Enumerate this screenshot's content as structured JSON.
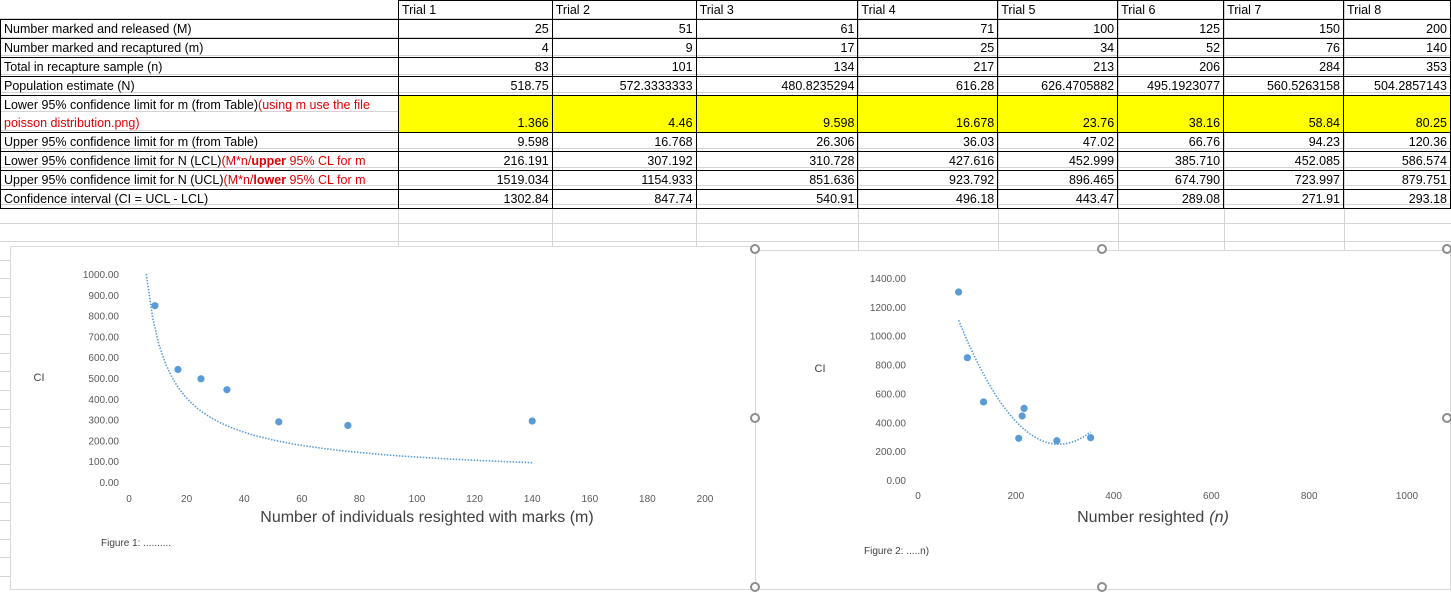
{
  "table": {
    "headers": [
      "Trial 1",
      "Trial 2",
      "Trial 3",
      "Trial 4",
      "Trial 5",
      "Trial 6",
      "Trial 7",
      "Trial 8"
    ],
    "rows": [
      {
        "label": "Number marked and released (M)",
        "values": [
          "25",
          "51",
          "61",
          "71",
          "100",
          "125",
          "150",
          "200"
        ]
      },
      {
        "label": "Number marked and recaptured (m)",
        "values": [
          "4",
          "9",
          "17",
          "25",
          "34",
          "52",
          "76",
          "140"
        ]
      },
      {
        "label": "Total in recapture sample (n)",
        "values": [
          "83",
          "101",
          "134",
          "217",
          "213",
          "206",
          "284",
          "353"
        ]
      },
      {
        "label": "Population estimate (N)",
        "values": [
          "518.75",
          "572.3333333",
          "480.8235294",
          "616.28",
          "626.4705882",
          "495.1923077",
          "560.5263158",
          "504.2857143"
        ]
      },
      {
        "label_a": "Lower 95% confidence limit for m (from Table)",
        "label_b": "(using m use the file poisson distribution.png)",
        "values": [
          "1.366",
          "4.46",
          "9.598",
          "16.678",
          "23.76",
          "38.16",
          "58.84",
          "80.25"
        ]
      },
      {
        "label": "Upper 95% confidence limit for m (from Table)",
        "values": [
          "9.598",
          "16.768",
          "26.306",
          "36.03",
          "47.02",
          "66.76",
          "94.23",
          "120.36"
        ]
      },
      {
        "label_a": "Lower 95% confidence limit for N (LCL)",
        "label_b": "(M*n/",
        "label_c": "upper",
        "label_d": " 95% CL for m",
        "values": [
          "216.191",
          "307.192",
          "310.728",
          "427.616",
          "452.999",
          "385.710",
          "452.085",
          "586.574"
        ]
      },
      {
        "label_a": "Upper 95% confidence limit for N (UCL)",
        "label_b": "(M*n/",
        "label_c": "lower",
        "label_d": " 95% CL for m",
        "values": [
          "1519.034",
          "1154.933",
          "851.636",
          "923.792",
          "896.465",
          "674.790",
          "723.997",
          "879.751"
        ]
      },
      {
        "label": "Confidence interval (CI = UCL - LCL)",
        "values": [
          "1302.84",
          "847.74",
          "540.91",
          "496.18",
          "443.47",
          "289.08",
          "271.91",
          "293.18"
        ]
      }
    ]
  },
  "chart_data": [
    {
      "type": "scatter",
      "title": "",
      "xlabel": "Number of individuals resighted with marks (m)",
      "ylabel": "CI",
      "xlim": [
        0,
        200
      ],
      "ylim": [
        0,
        1000
      ],
      "x_ticks": [
        "0",
        "20",
        "40",
        "60",
        "80",
        "100",
        "120",
        "140",
        "160",
        "180",
        "200"
      ],
      "y_ticks": [
        "0.00",
        "100.00",
        "200.00",
        "300.00",
        "400.00",
        "500.00",
        "600.00",
        "700.00",
        "800.00",
        "900.00",
        "1000.00"
      ],
      "points": [
        [
          9,
          847.74
        ],
        [
          17,
          540.91
        ],
        [
          25,
          496.18
        ],
        [
          34,
          443.47
        ],
        [
          52,
          289.08
        ],
        [
          76,
          271.91
        ],
        [
          140,
          293.18
        ]
      ],
      "trendline": {
        "style": "dotted",
        "x_range": [
          6,
          140
        ],
        "y_range": [
          1000,
          93
        ]
      },
      "caption": "Figure 1:  ..........",
      "color": "#5b9bd5"
    },
    {
      "type": "scatter",
      "title": "",
      "xlabel": "Number resighted",
      "xlabel_var": "(n)",
      "ylabel": "CI",
      "xlim": [
        0,
        1000
      ],
      "ylim": [
        0,
        1400
      ],
      "x_ticks": [
        "0",
        "200",
        "400",
        "600",
        "800",
        "1000"
      ],
      "y_ticks": [
        "0.00",
        "200.00",
        "400.00",
        "600.00",
        "800.00",
        "1000.00",
        "1200.00",
        "1400.00"
      ],
      "points": [
        [
          83,
          1302.84
        ],
        [
          101,
          847.74
        ],
        [
          134,
          540.91
        ],
        [
          217,
          496.18
        ],
        [
          213,
          443.47
        ],
        [
          206,
          289.08
        ],
        [
          284,
          271.91
        ],
        [
          353,
          293.18
        ]
      ],
      "trendline": {
        "style": "dotted",
        "x_range": [
          83,
          353
        ]
      },
      "caption": "Figure 2:  .....n)",
      "color": "#5b9bd5"
    }
  ]
}
